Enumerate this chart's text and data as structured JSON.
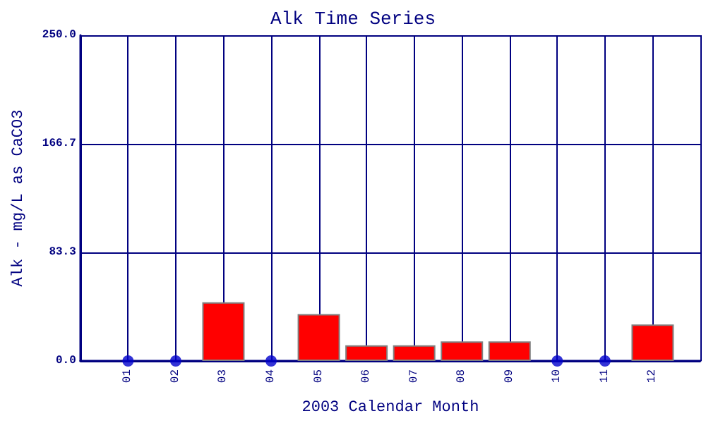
{
  "chart_data": {
    "type": "bar",
    "title": "Alk Time Series",
    "xlabel": "2003 Calendar Month",
    "ylabel": "Alk - mg/L as CaCO3",
    "categories": [
      "01",
      "02",
      "03",
      "04",
      "05",
      "06",
      "07",
      "08",
      "09",
      "10",
      "11",
      "12"
    ],
    "series": [
      {
        "color": "#ff0000",
        "values": [
          null,
          null,
          45,
          null,
          36,
          12,
          12,
          15,
          15,
          null,
          null,
          28
        ]
      },
      {
        "type": "scatter",
        "color": "#0000cc",
        "x": [
          "01",
          "02",
          "04",
          "10",
          "11"
        ],
        "values": [
          0,
          0,
          0,
          0,
          0
        ]
      }
    ],
    "ylim": [
      0,
      250
    ],
    "yticks": [
      {
        "value": 0,
        "label": "0.0"
      },
      83.3,
      166.7,
      {
        "value": 250,
        "label": "250.0"
      }
    ],
    "grid": true,
    "marker": "circle"
  }
}
